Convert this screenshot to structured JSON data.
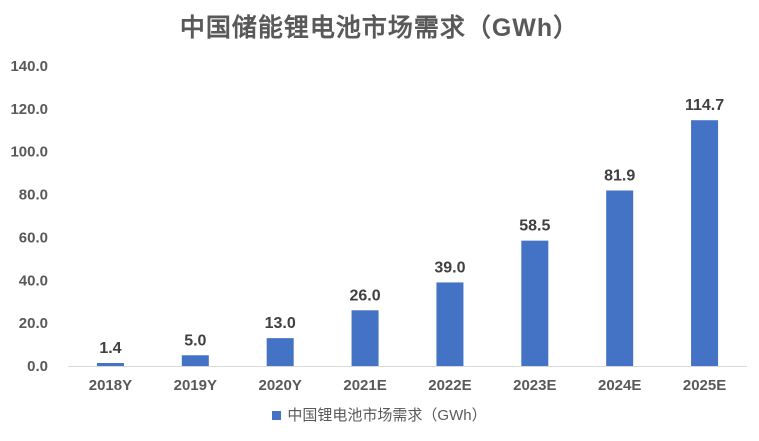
{
  "chart_data": {
    "type": "bar",
    "title": "中国储能锂电池市场需求（GWh）",
    "categories": [
      "2018Y",
      "2019Y",
      "2020Y",
      "2021E",
      "2022E",
      "2023E",
      "2024E",
      "2025E"
    ],
    "series": [
      {
        "name": "中国锂电池市场需求（GWh）",
        "values": [
          1.4,
          5.0,
          13.0,
          26.0,
          39.0,
          58.5,
          81.9,
          114.7
        ],
        "color": "#4472c4"
      }
    ],
    "data_labels": [
      "1.4",
      "5.0",
      "13.0",
      "26.0",
      "39.0",
      "58.5",
      "81.9",
      "114.7"
    ],
    "yticks": [
      "0.0",
      "20.0",
      "40.0",
      "60.0",
      "80.0",
      "100.0",
      "120.0",
      "140.0"
    ],
    "ylim": [
      0,
      140
    ],
    "grid": false,
    "legend_position": "bottom"
  }
}
